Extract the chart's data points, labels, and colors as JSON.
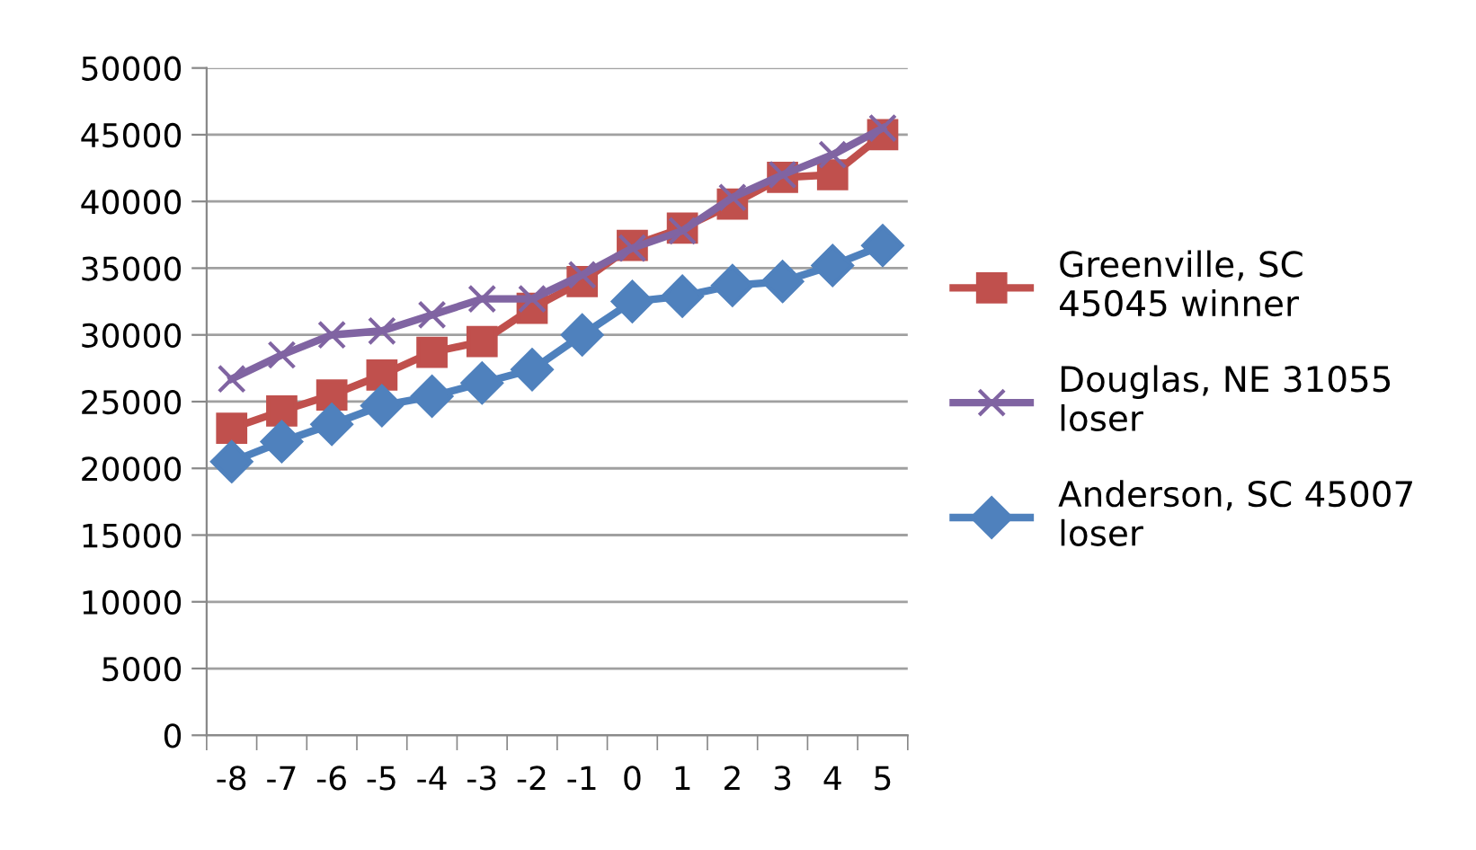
{
  "chart_data": {
    "type": "line",
    "categories": [
      "-8",
      "-7",
      "-6",
      "-5",
      "-4",
      "-3",
      "-2",
      "-1",
      "0",
      "1",
      "2",
      "3",
      "4",
      "5"
    ],
    "ylim": [
      0,
      50000
    ],
    "yticks": [
      0,
      5000,
      10000,
      15000,
      20000,
      25000,
      30000,
      35000,
      40000,
      45000,
      50000
    ],
    "grid": "y",
    "legend": "right",
    "series": [
      {
        "name": "Greenville, SC 45045 winner",
        "color": "#c0504d",
        "marker": "square",
        "values": [
          23000,
          24300,
          25500,
          27000,
          28700,
          29500,
          32000,
          34000,
          36700,
          38000,
          39800,
          41800,
          42000,
          45000
        ]
      },
      {
        "name": "Douglas, NE 31055 loser",
        "color": "#8064a2",
        "marker": "cross",
        "values": [
          26700,
          28500,
          30000,
          30300,
          31500,
          32700,
          32700,
          34500,
          36500,
          37800,
          40300,
          42000,
          43500,
          45500
        ]
      },
      {
        "name": "Anderson, SC 45007 loser",
        "color": "#4f81bd",
        "marker": "diamond",
        "values": [
          20500,
          22000,
          23300,
          24700,
          25400,
          26400,
          27400,
          30000,
          32500,
          32900,
          33700,
          34000,
          35200,
          36700
        ]
      }
    ]
  }
}
